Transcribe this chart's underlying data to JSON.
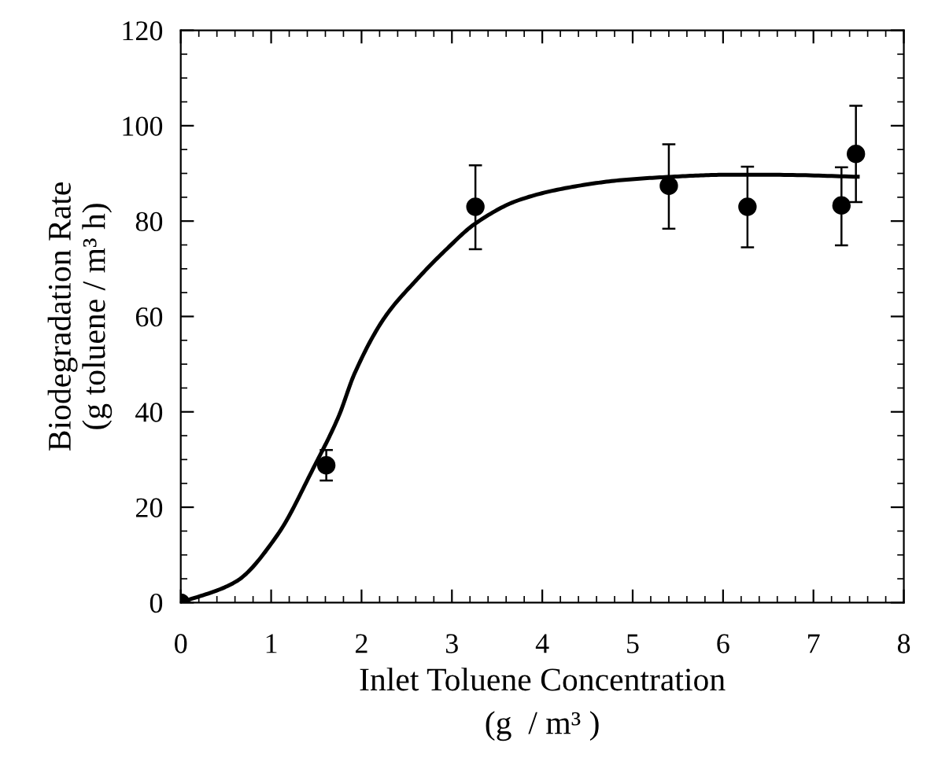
{
  "chart_data": {
    "type": "scatter",
    "xlabel": "Inlet Toluene Concentration\n(g  / m³ )",
    "ylabel": "Biodegradation Rate\n(g toluene / m³ h)",
    "xlim": [
      0,
      8
    ],
    "ylim": [
      0,
      120
    ],
    "xticks": [
      0,
      1,
      2,
      3,
      4,
      5,
      6,
      7,
      8
    ],
    "yticks": [
      0,
      20,
      40,
      60,
      80,
      100,
      120
    ],
    "grid": false,
    "legend": false,
    "series": [
      {
        "color": "#000000",
        "marker": "circle",
        "x": [
          0,
          1.61,
          3.26,
          5.4,
          6.27,
          7.31,
          7.47
        ],
        "values": [
          0,
          28.8,
          83.0,
          87.4,
          83.0,
          83.3,
          94.1
        ],
        "errors": [
          null,
          [
            25.6,
            32.0
          ],
          [
            74.1,
            91.7
          ],
          [
            78.4,
            96.1
          ],
          [
            74.5,
            91.4
          ],
          [
            74.9,
            91.3
          ],
          [
            84.0,
            104.2
          ]
        ]
      },
      {
        "type": "line",
        "color": "#000000",
        "line_style": "solid",
        "x": [
          0,
          0.61,
          1.07,
          1.47,
          1.75,
          1.92,
          2.26,
          2.6,
          2.94,
          3.26,
          3.74,
          4.31,
          4.88,
          5.44,
          6.01,
          6.58,
          7.49
        ],
        "values": [
          0,
          4.4,
          14.2,
          28.3,
          39.2,
          47.9,
          59.9,
          67.5,
          74.1,
          79.5,
          84.4,
          87.1,
          88.6,
          89.3,
          89.7,
          89.7,
          89.3
        ]
      }
    ]
  }
}
